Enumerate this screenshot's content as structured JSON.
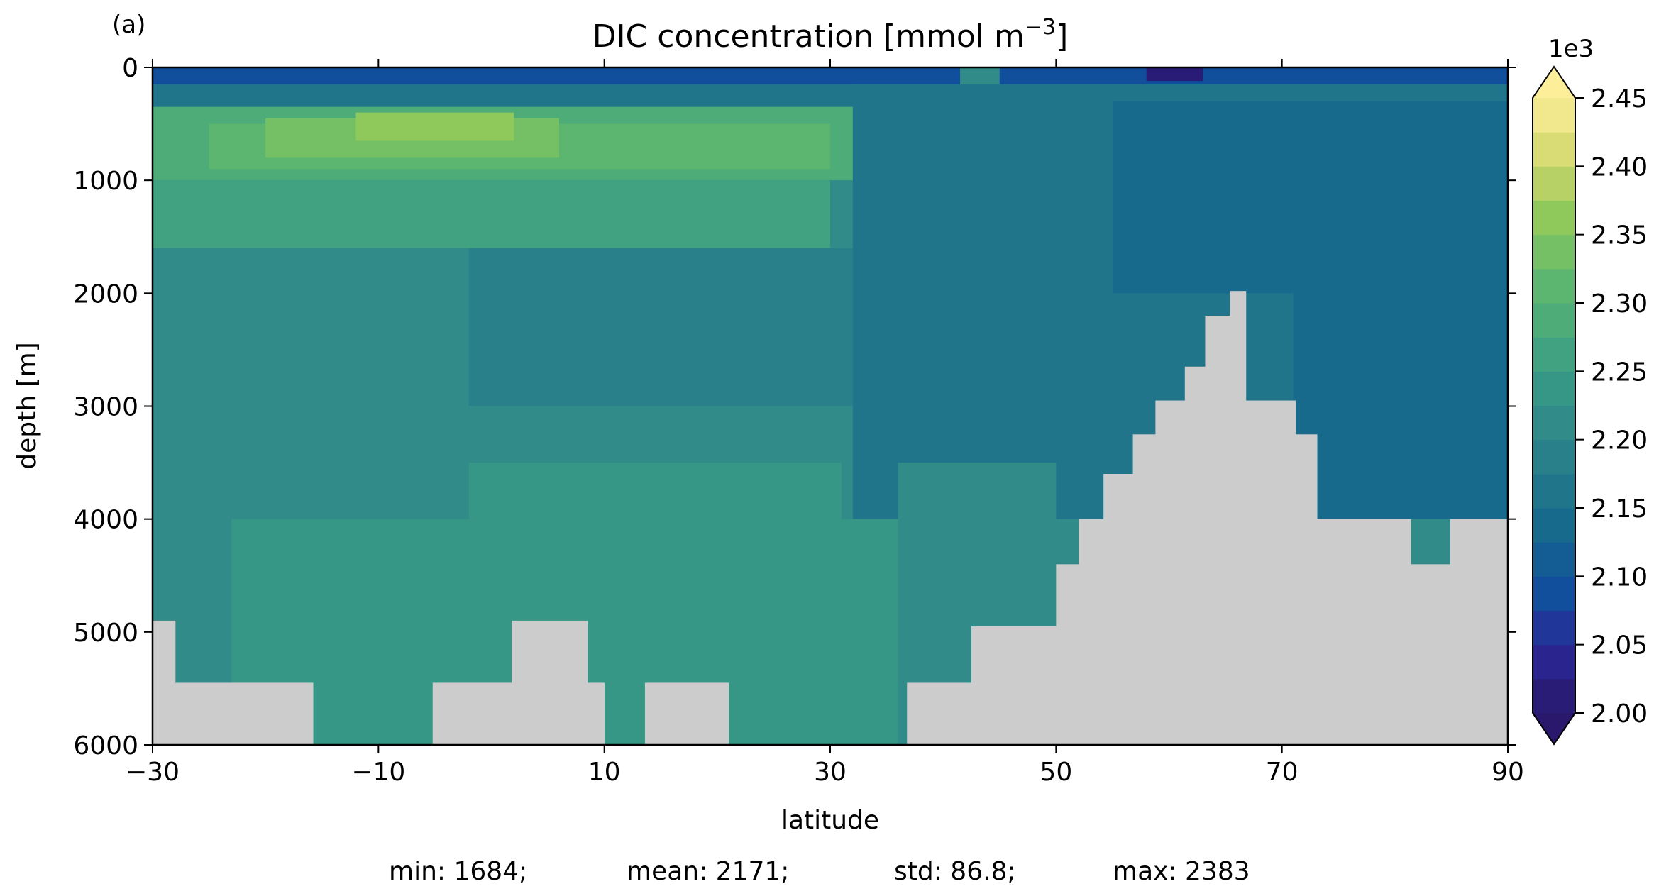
{
  "chart_data": {
    "type": "heatmap",
    "panel_label": "(a)",
    "title": "DIC concentration [mmol m",
    "title_superscript": "−3",
    "title_suffix": "]",
    "xlabel": "latitude",
    "ylabel": "depth [m]",
    "xlim": [
      -30,
      90
    ],
    "ylim": [
      6000,
      0
    ],
    "y_inverted": true,
    "xticks": [
      "−30",
      "−10",
      "10",
      "30",
      "50",
      "70",
      "90"
    ],
    "xtick_values": [
      -30,
      -10,
      10,
      30,
      50,
      70,
      90
    ],
    "yticks": [
      "0",
      "1000",
      "2000",
      "3000",
      "4000",
      "5000",
      "6000"
    ],
    "ytick_values": [
      0,
      1000,
      2000,
      3000,
      4000,
      5000,
      6000
    ],
    "colorbar": {
      "multiplier_label": "1e3",
      "vmin": 2.0,
      "vmax": 2.45,
      "step": 0.025,
      "extend": "both",
      "tick_labels": [
        "2.00",
        "2.05",
        "2.10",
        "2.15",
        "2.20",
        "2.25",
        "2.30",
        "2.35",
        "2.40",
        "2.45"
      ],
      "tick_values": [
        2.0,
        2.05,
        2.1,
        2.15,
        2.2,
        2.25,
        2.3,
        2.35,
        2.4,
        2.45
      ],
      "colormap": "haline"
    },
    "bathymetry_color": "#cccccc",
    "stats": {
      "min": "min: 1684;",
      "mean": "mean: 2171;",
      "std": "std: 86.8;",
      "max": "max: 2383"
    },
    "grid": false,
    "regions": [
      {
        "lat": [
          -30,
          90
        ],
        "depth": [
          0,
          6000
        ],
        "value": 2.22
      },
      {
        "lat": [
          -30,
          90
        ],
        "depth": [
          0,
          150
        ],
        "value": 2.09
      },
      {
        "lat": [
          -30,
          90
        ],
        "depth": [
          150,
          350
        ],
        "value": 2.17
      },
      {
        "lat": [
          -30,
          40
        ],
        "depth": [
          350,
          1000
        ],
        "value": 2.28
      },
      {
        "lat": [
          -25,
          30
        ],
        "depth": [
          500,
          900
        ],
        "value": 2.31
      },
      {
        "lat": [
          -20,
          6
        ],
        "depth": [
          450,
          800
        ],
        "value": 2.34
      },
      {
        "lat": [
          -12,
          2
        ],
        "depth": [
          400,
          650
        ],
        "value": 2.37
      },
      {
        "lat": [
          -30,
          30
        ],
        "depth": [
          1000,
          1600
        ],
        "value": 2.25
      },
      {
        "lat": [
          41.5,
          45
        ],
        "depth": [
          0,
          900
        ],
        "value": 2.22
      },
      {
        "lat": [
          -2,
          38
        ],
        "depth": [
          1600,
          3000
        ],
        "value": 2.19
      },
      {
        "lat": [
          10,
          30
        ],
        "depth": [
          2200,
          2800
        ],
        "value": 2.18
      },
      {
        "lat": [
          32,
          90
        ],
        "depth": [
          150,
          4000
        ],
        "value": 2.16
      },
      {
        "lat": [
          55,
          90
        ],
        "depth": [
          300,
          2000
        ],
        "value": 2.14
      },
      {
        "lat": [
          71,
          90
        ],
        "depth": [
          1500,
          4000
        ],
        "value": 2.13
      },
      {
        "lat": [
          58,
          63
        ],
        "depth": [
          0,
          120
        ],
        "value": 2.02
      },
      {
        "lat": [
          -2,
          31
        ],
        "depth": [
          3500,
          4000
        ],
        "value": 2.24
      },
      {
        "lat": [
          -23,
          36
        ],
        "depth": [
          4000,
          6000
        ],
        "value": 2.24
      },
      {
        "lat": [
          36,
          50
        ],
        "depth": [
          3500,
          5000
        ],
        "value": 2.2
      }
    ],
    "land": [
      {
        "lat": [
          -30,
          -28
        ],
        "depth": [
          4900,
          6000
        ]
      },
      {
        "lat": [
          -28,
          -15.8
        ],
        "depth": [
          5450,
          6000
        ]
      },
      {
        "lat": [
          -5.2,
          1.8
        ],
        "depth": [
          5450,
          6000
        ]
      },
      {
        "lat": [
          1.8,
          8.5
        ],
        "depth": [
          4900,
          6000
        ]
      },
      {
        "lat": [
          8.5,
          10
        ],
        "depth": [
          5450,
          6000
        ]
      },
      {
        "lat": [
          13.6,
          21
        ],
        "depth": [
          5450,
          6000
        ]
      },
      {
        "lat": [
          36.8,
          42.5
        ],
        "depth": [
          5450,
          6000
        ]
      },
      {
        "lat": [
          42.5,
          50
        ],
        "depth": [
          4950,
          6000
        ]
      },
      {
        "lat": [
          50,
          52
        ],
        "depth": [
          4400,
          6000
        ]
      },
      {
        "lat": [
          52,
          54.2
        ],
        "depth": [
          4000,
          6000
        ]
      },
      {
        "lat": [
          54.2,
          56.8
        ],
        "depth": [
          3600,
          6000
        ]
      },
      {
        "lat": [
          56.8,
          58.8
        ],
        "depth": [
          3250,
          6000
        ]
      },
      {
        "lat": [
          58.8,
          61.4
        ],
        "depth": [
          2950,
          6000
        ]
      },
      {
        "lat": [
          61.4,
          63.2
        ],
        "depth": [
          2650,
          6000
        ]
      },
      {
        "lat": [
          63.2,
          65.4
        ],
        "depth": [
          2200,
          6000
        ]
      },
      {
        "lat": [
          65.4,
          66.8
        ],
        "depth": [
          1980,
          6000
        ]
      },
      {
        "lat": [
          66.8,
          71.2
        ],
        "depth": [
          2950,
          6000
        ]
      },
      {
        "lat": [
          71.2,
          73.1
        ],
        "depth": [
          3250,
          6000
        ]
      },
      {
        "lat": [
          73.1,
          81.4
        ],
        "depth": [
          4000,
          6000
        ]
      },
      {
        "lat": [
          81.4,
          84.9
        ],
        "depth": [
          4400,
          6000
        ]
      },
      {
        "lat": [
          84.9,
          90
        ],
        "depth": [
          4000,
          6000
        ]
      }
    ]
  }
}
